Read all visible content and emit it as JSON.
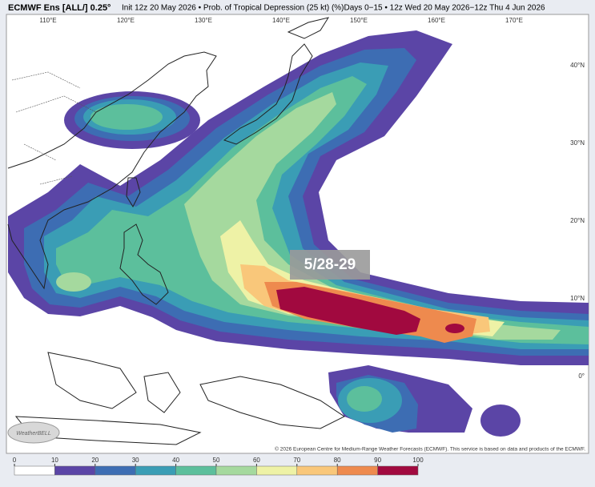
{
  "header": {
    "model": "ECMWF Ens [ALL/] 0.25°",
    "description": "Init 12z 20 May 2026 • Prob. of Tropical Depression (25 kt) (%)Days 0−15 • 12z Wed 20 May 2026−12z Thu 4 Jun 2026"
  },
  "map": {
    "lon_labels": [
      "110°E",
      "120°E",
      "130°E",
      "140°E",
      "150°E",
      "160°E",
      "170°E"
    ],
    "lat_labels": [
      "40°N",
      "30°N",
      "20°N",
      "10°N",
      "0°"
    ],
    "annotation": "5/28-29",
    "credit": "© 2026 European Centre for Medium-Range Weather Forecasts (ECMWF). This service is based on data and products of the ECMWF.",
    "logo": "WeatherBELL"
  },
  "colorbar": {
    "ticks": [
      0,
      10,
      20,
      30,
      40,
      50,
      60,
      70,
      80,
      90,
      100
    ],
    "colors": [
      "#ffffff",
      "#5b45a6",
      "#3d6db3",
      "#3a9db5",
      "#5cbf9c",
      "#a5d99e",
      "#eef2a6",
      "#f9c77a",
      "#ee8a4e",
      "#a1093f"
    ]
  }
}
